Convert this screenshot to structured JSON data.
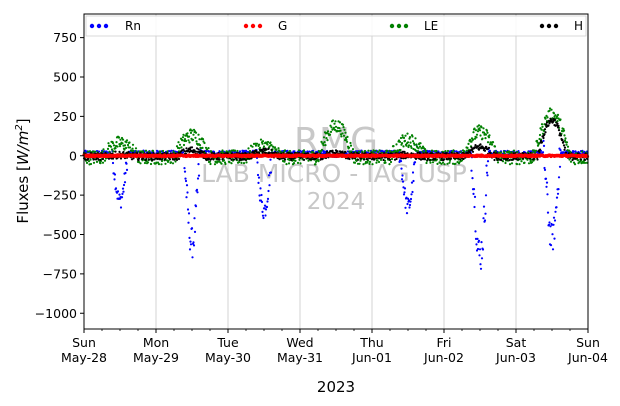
{
  "chart_data": {
    "type": "scatter",
    "xlabel": "2023",
    "ylabel_main": "Fluxes [",
    "ylabel_unit": "W/m",
    "ylabel_sup": "2",
    "ylabel_end": "]",
    "ylim": [
      -1100,
      900
    ],
    "yticks": [
      750,
      500,
      250,
      0,
      -250,
      -500,
      -750,
      -1000
    ],
    "ytick_labels": [
      "750",
      "500",
      "250",
      "0",
      "−250",
      "−500",
      "−750",
      "−1000"
    ],
    "xlim_days": [
      0,
      7
    ],
    "xticks": [
      {
        "day": 0,
        "top": "Sun",
        "bottom": "May-28"
      },
      {
        "day": 1,
        "top": "Mon",
        "bottom": "May-29"
      },
      {
        "day": 2,
        "top": "Tue",
        "bottom": "May-30"
      },
      {
        "day": 3,
        "top": "Wed",
        "bottom": "May-31"
      },
      {
        "day": 4,
        "top": "Thu",
        "bottom": "Jun-01"
      },
      {
        "day": 5,
        "top": "Fri",
        "bottom": "Jun-02"
      },
      {
        "day": 6,
        "top": "Sat",
        "bottom": "Jun-03"
      },
      {
        "day": 7,
        "top": "Sun",
        "bottom": "Jun-04"
      }
    ],
    "grid": "vertical",
    "legend_position": "top",
    "watermark": {
      "line1": "RMG",
      "line2": "LAB MICRO - IAG USP",
      "line3": "2024"
    },
    "series": [
      {
        "name": "Rn",
        "color": "#0000ff",
        "night": 15,
        "peaks": [
          -300,
          -570,
          -360,
          -20,
          -340,
          -650,
          -540
        ]
      },
      {
        "name": "G",
        "color": "#ff0000",
        "night": 0,
        "peaks": [
          -5,
          -5,
          -5,
          -5,
          -5,
          -5,
          -5
        ]
      },
      {
        "name": "LE",
        "color": "#008000",
        "night": -10,
        "peaks": [
          90,
          140,
          70,
          200,
          110,
          160,
          270
        ]
      },
      {
        "name": "H",
        "color": "#000000",
        "night": -5,
        "peaks": [
          10,
          40,
          30,
          20,
          10,
          60,
          230
        ]
      }
    ]
  }
}
